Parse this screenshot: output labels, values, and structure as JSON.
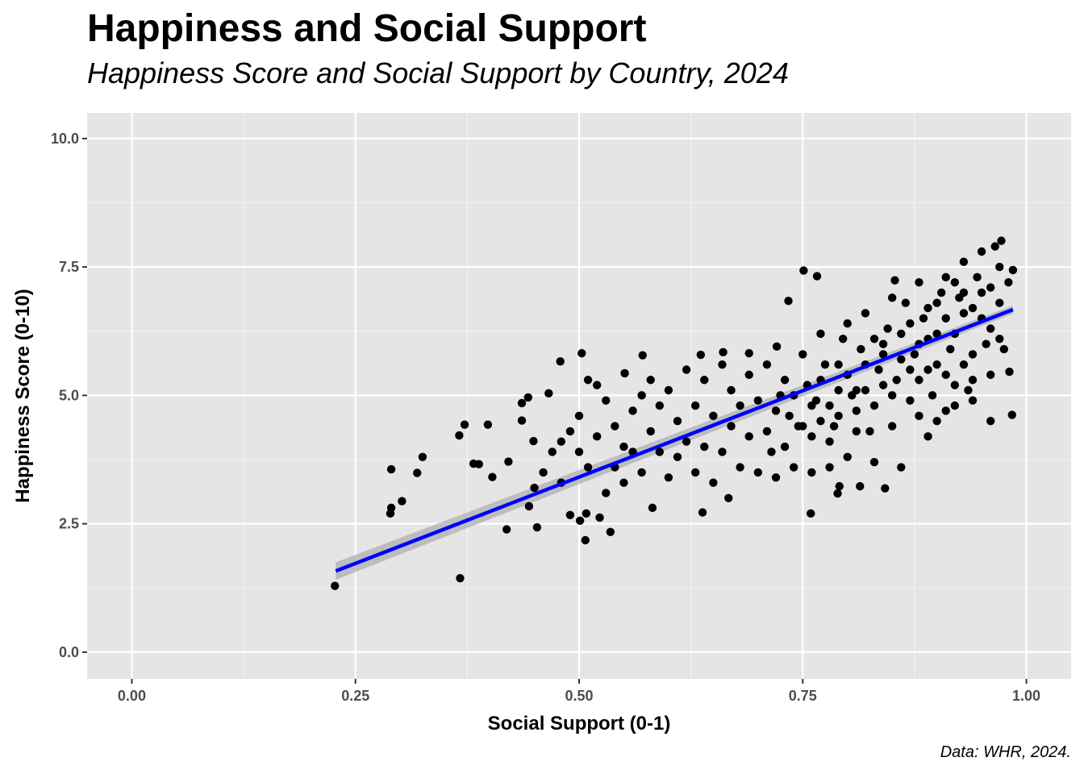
{
  "title": "Happiness and Social Support",
  "subtitle": "Happiness Score and Social Support by Country, 2024",
  "caption": "Data: WHR, 2024.",
  "chart_data": {
    "type": "scatter",
    "title": "Happiness and Social Support",
    "subtitle": "Happiness Score and Social Support by Country, 2024",
    "xlabel": "Social Support (0-1)",
    "ylabel": "Happiness Score (0-10)",
    "xlim": [
      -0.05,
      1.05
    ],
    "ylim": [
      -0.52,
      10.5
    ],
    "xticks": [
      "0.00",
      "0.25",
      "0.50",
      "0.75",
      "1.00"
    ],
    "yticks": [
      "0.0",
      "2.5",
      "5.0",
      "7.5",
      "10.0"
    ],
    "grid": true,
    "background": "#e5e5e5",
    "point_color": "#000000",
    "fit_line": {
      "method": "linear",
      "color": "#0000ff",
      "band_color": "#b3b3b3",
      "x": [
        0.228,
        0.985
      ],
      "y": [
        1.58,
        6.67
      ],
      "band_halfwidth": [
        0.17,
        0.08
      ]
    },
    "points": [
      [
        0.227,
        1.29
      ],
      [
        0.367,
        1.44
      ],
      [
        0.29,
        3.56
      ],
      [
        0.289,
        2.7
      ],
      [
        0.29,
        2.81
      ],
      [
        0.302,
        2.94
      ],
      [
        0.319,
        3.49
      ],
      [
        0.325,
        3.8
      ],
      [
        0.366,
        4.22
      ],
      [
        0.372,
        4.43
      ],
      [
        0.398,
        4.43
      ],
      [
        0.382,
        3.67
      ],
      [
        0.388,
        3.66
      ],
      [
        0.403,
        3.41
      ],
      [
        0.419,
        2.39
      ],
      [
        0.421,
        3.71
      ],
      [
        0.436,
        4.51
      ],
      [
        0.436,
        4.85
      ],
      [
        0.443,
        4.96
      ],
      [
        0.444,
        2.84
      ],
      [
        0.449,
        4.11
      ],
      [
        0.453,
        2.43
      ],
      [
        0.479,
        5.66
      ],
      [
        0.466,
        5.04
      ],
      [
        0.503,
        5.82
      ],
      [
        0.507,
        2.18
      ],
      [
        0.501,
        2.56
      ],
      [
        0.49,
        2.67
      ],
      [
        0.508,
        2.7
      ],
      [
        0.535,
        2.34
      ],
      [
        0.523,
        2.62
      ],
      [
        0.551,
        5.43
      ],
      [
        0.571,
        5.78
      ],
      [
        0.582,
        2.81
      ],
      [
        0.751,
        7.43
      ],
      [
        0.766,
        7.32
      ],
      [
        0.759,
        2.7
      ],
      [
        0.984,
        4.62
      ],
      [
        0.981,
        5.46
      ],
      [
        0.972,
        8.01
      ],
      [
        0.985,
        7.44
      ],
      [
        0.842,
        3.19
      ],
      [
        0.814,
        3.23
      ],
      [
        0.789,
        3.09
      ],
      [
        0.791,
        3.23
      ],
      [
        0.638,
        2.72
      ],
      [
        0.667,
        3.0
      ],
      [
        0.636,
        5.79
      ],
      [
        0.661,
        5.84
      ],
      [
        0.69,
        5.82
      ],
      [
        0.721,
        5.95
      ],
      [
        0.734,
        6.84
      ],
      [
        0.853,
        7.24
      ],
      [
        0.45,
        3.2
      ],
      [
        0.46,
        3.5
      ],
      [
        0.47,
        3.9
      ],
      [
        0.48,
        4.1
      ],
      [
        0.48,
        3.3
      ],
      [
        0.49,
        4.3
      ],
      [
        0.5,
        3.9
      ],
      [
        0.5,
        4.6
      ],
      [
        0.51,
        5.3
      ],
      [
        0.51,
        3.6
      ],
      [
        0.52,
        4.2
      ],
      [
        0.52,
        5.2
      ],
      [
        0.53,
        3.1
      ],
      [
        0.53,
        4.9
      ],
      [
        0.54,
        3.6
      ],
      [
        0.54,
        4.4
      ],
      [
        0.55,
        4.0
      ],
      [
        0.55,
        3.3
      ],
      [
        0.56,
        4.7
      ],
      [
        0.56,
        3.9
      ],
      [
        0.57,
        5.0
      ],
      [
        0.57,
        3.5
      ],
      [
        0.58,
        4.3
      ],
      [
        0.58,
        5.3
      ],
      [
        0.59,
        3.9
      ],
      [
        0.59,
        4.8
      ],
      [
        0.6,
        3.4
      ],
      [
        0.6,
        5.1
      ],
      [
        0.61,
        4.5
      ],
      [
        0.61,
        3.8
      ],
      [
        0.62,
        5.5
      ],
      [
        0.62,
        4.1
      ],
      [
        0.63,
        3.5
      ],
      [
        0.63,
        4.8
      ],
      [
        0.64,
        5.3
      ],
      [
        0.64,
        4.0
      ],
      [
        0.65,
        3.3
      ],
      [
        0.65,
        4.6
      ],
      [
        0.66,
        5.6
      ],
      [
        0.66,
        3.9
      ],
      [
        0.67,
        4.4
      ],
      [
        0.67,
        5.1
      ],
      [
        0.68,
        3.6
      ],
      [
        0.68,
        4.8
      ],
      [
        0.69,
        5.4
      ],
      [
        0.69,
        4.2
      ],
      [
        0.7,
        3.5
      ],
      [
        0.7,
        4.9
      ],
      [
        0.71,
        5.6
      ],
      [
        0.71,
        4.3
      ],
      [
        0.72,
        3.4
      ],
      [
        0.72,
        4.7
      ],
      [
        0.73,
        5.3
      ],
      [
        0.73,
        4.0
      ],
      [
        0.74,
        3.6
      ],
      [
        0.74,
        5.0
      ],
      [
        0.75,
        5.8
      ],
      [
        0.75,
        4.4
      ],
      [
        0.76,
        3.5
      ],
      [
        0.76,
        4.8
      ],
      [
        0.77,
        6.2
      ],
      [
        0.77,
        5.3
      ],
      [
        0.78,
        4.1
      ],
      [
        0.78,
        3.6
      ],
      [
        0.79,
        5.6
      ],
      [
        0.79,
        4.6
      ],
      [
        0.8,
        6.4
      ],
      [
        0.8,
        3.8
      ],
      [
        0.81,
        5.1
      ],
      [
        0.81,
        4.3
      ],
      [
        0.82,
        6.6
      ],
      [
        0.82,
        5.6
      ],
      [
        0.83,
        3.7
      ],
      [
        0.83,
        4.8
      ],
      [
        0.84,
        6.0
      ],
      [
        0.84,
        5.2
      ],
      [
        0.85,
        6.9
      ],
      [
        0.85,
        4.4
      ],
      [
        0.86,
        3.6
      ],
      [
        0.86,
        5.7
      ],
      [
        0.87,
        6.4
      ],
      [
        0.87,
        4.9
      ],
      [
        0.88,
        7.2
      ],
      [
        0.88,
        5.3
      ],
      [
        0.89,
        4.2
      ],
      [
        0.89,
        6.1
      ],
      [
        0.9,
        6.8
      ],
      [
        0.9,
        5.6
      ],
      [
        0.91,
        4.7
      ],
      [
        0.91,
        7.3
      ],
      [
        0.92,
        6.2
      ],
      [
        0.92,
        5.2
      ],
      [
        0.93,
        7.6
      ],
      [
        0.93,
        6.6
      ],
      [
        0.94,
        5.8
      ],
      [
        0.94,
        4.9
      ],
      [
        0.95,
        7.8
      ],
      [
        0.95,
        7.0
      ],
      [
        0.96,
        6.3
      ],
      [
        0.96,
        5.4
      ],
      [
        0.97,
        7.5
      ],
      [
        0.97,
        6.8
      ],
      [
        0.975,
        5.9
      ],
      [
        0.98,
        7.2
      ],
      [
        0.965,
        7.9
      ],
      [
        0.955,
        6.0
      ],
      [
        0.945,
        7.3
      ],
      [
        0.935,
        5.1
      ],
      [
        0.925,
        6.9
      ],
      [
        0.915,
        5.9
      ],
      [
        0.905,
        7.0
      ],
      [
        0.895,
        5.0
      ],
      [
        0.885,
        6.5
      ],
      [
        0.875,
        5.8
      ],
      [
        0.865,
        6.8
      ],
      [
        0.855,
        5.3
      ],
      [
        0.845,
        6.3
      ],
      [
        0.835,
        5.5
      ],
      [
        0.825,
        4.3
      ],
      [
        0.815,
        5.9
      ],
      [
        0.805,
        5.0
      ],
      [
        0.795,
        6.1
      ],
      [
        0.785,
        4.4
      ],
      [
        0.775,
        5.6
      ],
      [
        0.765,
        4.9
      ],
      [
        0.755,
        5.2
      ],
      [
        0.745,
        4.4
      ],
      [
        0.735,
        4.6
      ],
      [
        0.725,
        5.0
      ],
      [
        0.715,
        3.9
      ],
      [
        0.93,
        7.0
      ],
      [
        0.94,
        6.7
      ],
      [
        0.95,
        6.5
      ],
      [
        0.92,
        7.2
      ],
      [
        0.91,
        6.5
      ],
      [
        0.9,
        6.2
      ],
      [
        0.96,
        7.1
      ],
      [
        0.97,
        6.1
      ],
      [
        0.89,
        6.7
      ],
      [
        0.88,
        6.0
      ],
      [
        0.86,
        6.2
      ],
      [
        0.84,
        5.8
      ],
      [
        0.83,
        6.1
      ],
      [
        0.82,
        5.1
      ],
      [
        0.81,
        4.7
      ],
      [
        0.8,
        5.4
      ],
      [
        0.79,
        5.1
      ],
      [
        0.78,
        4.8
      ],
      [
        0.77,
        4.5
      ],
      [
        0.76,
        4.2
      ],
      [
        0.87,
        5.5
      ],
      [
        0.85,
        5.0
      ],
      [
        0.88,
        4.6
      ],
      [
        0.9,
        4.5
      ],
      [
        0.92,
        4.8
      ],
      [
        0.94,
        5.3
      ],
      [
        0.96,
        4.5
      ],
      [
        0.93,
        5.6
      ],
      [
        0.91,
        5.4
      ],
      [
        0.89,
        5.5
      ]
    ]
  }
}
